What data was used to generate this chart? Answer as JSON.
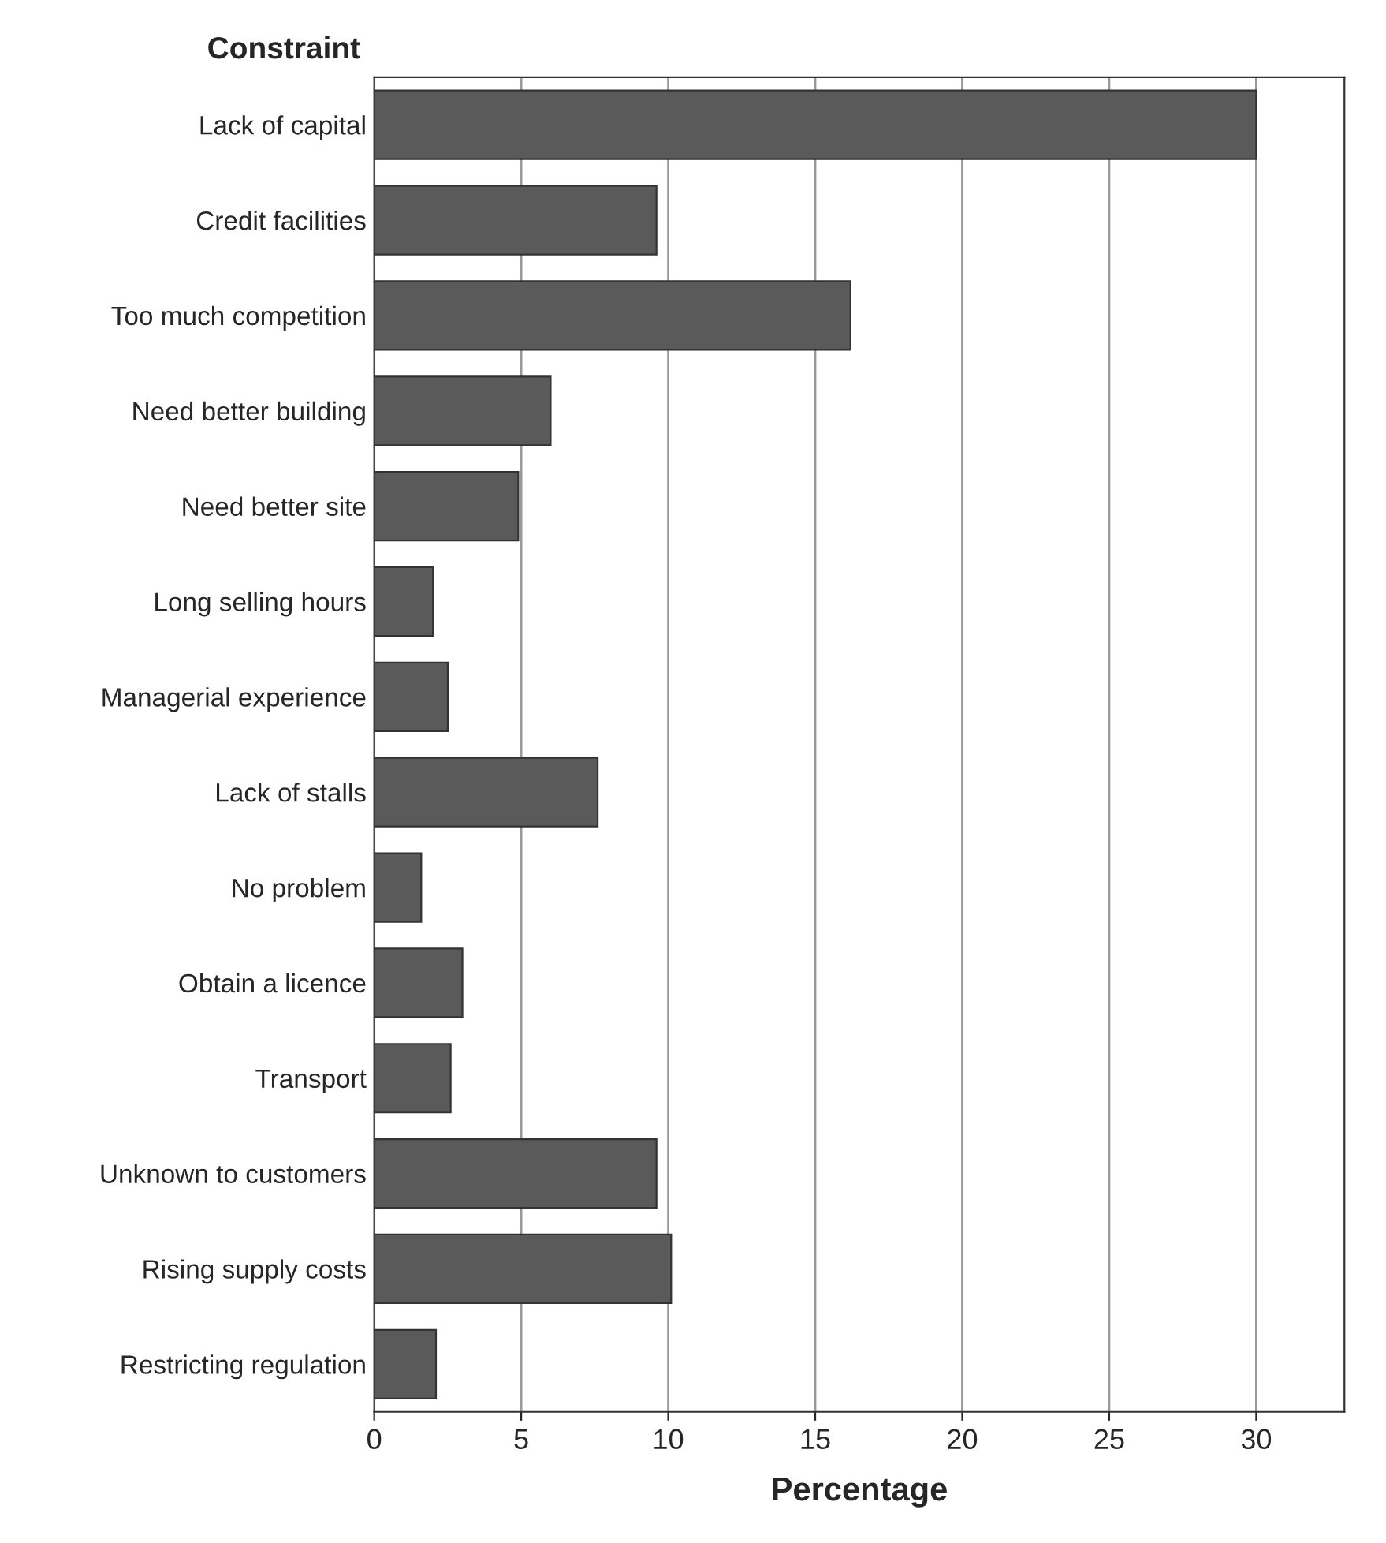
{
  "chart_data": {
    "type": "bar",
    "orientation": "horizontal",
    "xlabel": "Percentage",
    "ylabel": "Constraint",
    "categories": [
      "Lack of capital",
      "Credit facilities",
      "Too much competition",
      "Need better building",
      "Need better site",
      "Long selling hours",
      "Managerial experience",
      "Lack of stalls",
      "No problem",
      "Obtain a licence",
      "Transport",
      "Unknown to customers",
      "Rising supply costs",
      "Restricting regulation"
    ],
    "values": [
      30,
      9.6,
      16.2,
      6,
      4.9,
      2,
      2.5,
      7.6,
      1.6,
      3,
      2.6,
      9.6,
      10.1,
      2.1
    ],
    "color": "#5a5a5a",
    "xlim": [
      0,
      33
    ],
    "xticks": [
      0,
      5,
      10,
      15,
      20,
      25,
      30
    ],
    "grid": "x",
    "legend": false
  }
}
